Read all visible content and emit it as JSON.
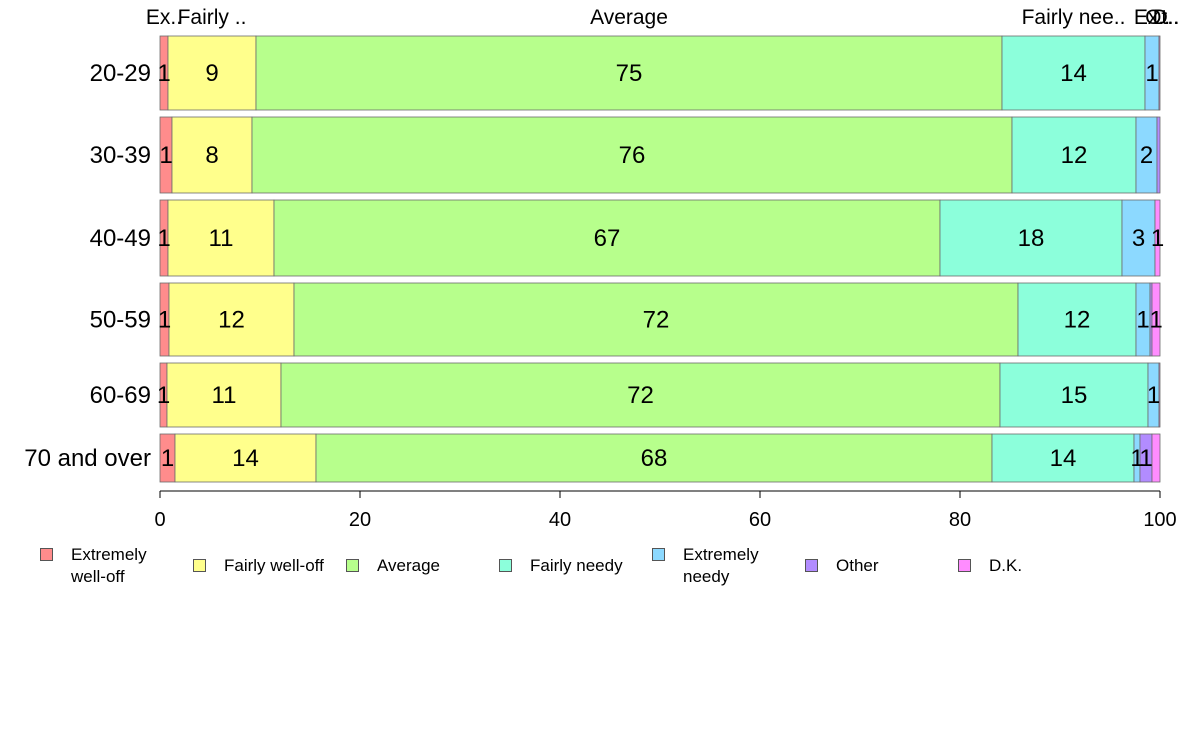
{
  "chart_data": {
    "type": "bar",
    "orientation": "horizontal-stacked",
    "categories": [
      "20-29",
      "30-39",
      "40-49",
      "50-59",
      "60-69",
      "70 and over"
    ],
    "series": [
      {
        "name": "Extremely well-off",
        "color": "#FF8C8C",
        "values": [
          0.8,
          1.2,
          0.8,
          0.9,
          0.7,
          1.5
        ],
        "labels": [
          "1",
          "1",
          "1",
          "1",
          "1",
          "1"
        ]
      },
      {
        "name": "Fairly well-off",
        "color": "#FFFF8C",
        "values": [
          8.8,
          8.0,
          10.6,
          12.5,
          11.4,
          14.1
        ],
        "labels": [
          "9",
          "8",
          "11",
          "12",
          "11",
          "14"
        ]
      },
      {
        "name": "Average",
        "color": "#B7FF8C",
        "values": [
          74.6,
          76.0,
          66.6,
          72.4,
          71.9,
          67.6
        ],
        "labels": [
          "75",
          "76",
          "67",
          "72",
          "72",
          "68"
        ]
      },
      {
        "name": "Fairly needy",
        "color": "#8CFFDB",
        "values": [
          14.3,
          12.4,
          18.2,
          11.8,
          14.8,
          14.2
        ],
        "labels": [
          "14",
          "12",
          "18",
          "12",
          "15",
          "14"
        ]
      },
      {
        "name": "Extremely needy",
        "color": "#8CD9FF",
        "values": [
          1.4,
          2.1,
          3.3,
          1.4,
          1.1,
          0.6
        ],
        "labels": [
          "1",
          "2",
          "3",
          "1",
          "1",
          "1"
        ]
      },
      {
        "name": "Other",
        "color": "#B28CFF",
        "values": [
          0.0,
          0.3,
          0.0,
          0.2,
          0.0,
          1.2
        ],
        "labels": [
          "",
          "",
          "",
          "",
          "",
          "1"
        ]
      },
      {
        "name": "D.K.",
        "color": "#FF8CFF",
        "values": [
          0.1,
          0.0,
          0.5,
          0.8,
          0.1,
          0.8
        ],
        "labels": [
          "",
          "",
          "1",
          "1",
          "",
          ""
        ]
      }
    ],
    "top_labels": [
      "Ex..",
      "Fairly ..",
      "Average",
      "Fairly nee..",
      "Ex..",
      "Ot..",
      "D.."
    ],
    "xlim": [
      0,
      100
    ],
    "xticks": [
      0,
      20,
      40,
      60,
      80,
      100
    ],
    "grid": false,
    "legend_position": "bottom"
  },
  "legend": {
    "items": [
      {
        "label": "Extremely\nwell-off",
        "color": "#FF8C8C"
      },
      {
        "label": "Fairly well-off",
        "color": "#FFFF8C"
      },
      {
        "label": "Average",
        "color": "#B7FF8C"
      },
      {
        "label": "Fairly needy",
        "color": "#8CFFDB"
      },
      {
        "label": "Extremely\nneedy",
        "color": "#8CD9FF"
      },
      {
        "label": "Other",
        "color": "#B28CFF"
      },
      {
        "label": "D.K.",
        "color": "#FF8CFF"
      }
    ]
  }
}
